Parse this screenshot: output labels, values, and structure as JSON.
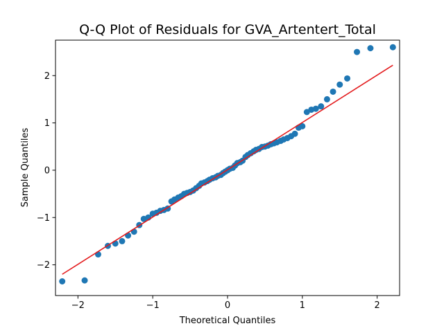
{
  "chart_data": {
    "type": "scatter",
    "title": "Q-Q Plot of Residuals for GVA_Artentert_Total",
    "xlabel": "Theoretical Quantiles",
    "ylabel": "Sample Quantiles",
    "xlim": [
      -2.3,
      2.3
    ],
    "ylim": [
      -2.65,
      2.75
    ],
    "xticks": [
      -2,
      -1,
      0,
      1,
      2
    ],
    "yticks": [
      -2,
      -1,
      0,
      1,
      2
    ],
    "grid": false,
    "legend": "none",
    "colors": {
      "points": "#1f77b4",
      "line": "#e31a1c",
      "axes": "#000000"
    },
    "reference_line": {
      "x": [
        -2.21,
        2.21
      ],
      "y": [
        -2.2,
        2.22
      ]
    },
    "series": [
      {
        "x": [
          -2.21,
          -1.91,
          -1.73,
          -1.6,
          -1.5,
          -1.41,
          -1.33,
          -1.25,
          -1.18,
          -1.12,
          -1.06,
          -1.0,
          -0.95,
          -0.9,
          -0.85,
          -0.8,
          -0.75,
          -0.71,
          -0.66,
          -0.62,
          -0.58,
          -0.54,
          -0.5,
          -0.46,
          -0.42,
          -0.38,
          -0.35,
          -0.31,
          -0.27,
          -0.24,
          -0.2,
          -0.16,
          -0.13,
          -0.09,
          -0.06,
          -0.03,
          0.0,
          0.03,
          0.07,
          0.1,
          0.13,
          0.17,
          0.2,
          0.24,
          0.27,
          0.31,
          0.35,
          0.38,
          0.42,
          0.46,
          0.5,
          0.54,
          0.58,
          0.62,
          0.66,
          0.71,
          0.75,
          0.8,
          0.85,
          0.9,
          0.95,
          1.0,
          1.06,
          1.12,
          1.18,
          1.25,
          1.33,
          1.41,
          1.5,
          1.6,
          1.73,
          1.91,
          2.21
        ],
        "y": [
          -2.35,
          -2.33,
          -1.78,
          -1.6,
          -1.55,
          -1.5,
          -1.38,
          -1.3,
          -1.16,
          -1.03,
          -1.0,
          -0.92,
          -0.9,
          -0.86,
          -0.84,
          -0.81,
          -0.66,
          -0.62,
          -0.58,
          -0.55,
          -0.5,
          -0.48,
          -0.46,
          -0.43,
          -0.38,
          -0.33,
          -0.28,
          -0.26,
          -0.23,
          -0.2,
          -0.17,
          -0.15,
          -0.12,
          -0.1,
          -0.06,
          -0.03,
          0.0,
          0.03,
          0.05,
          0.1,
          0.15,
          0.17,
          0.2,
          0.28,
          0.32,
          0.36,
          0.4,
          0.43,
          0.45,
          0.49,
          0.5,
          0.52,
          0.55,
          0.57,
          0.59,
          0.62,
          0.65,
          0.68,
          0.72,
          0.77,
          0.9,
          0.93,
          1.23,
          1.28,
          1.3,
          1.35,
          1.5,
          1.66,
          1.81,
          1.94,
          2.5,
          2.58,
          2.6
        ]
      }
    ]
  }
}
